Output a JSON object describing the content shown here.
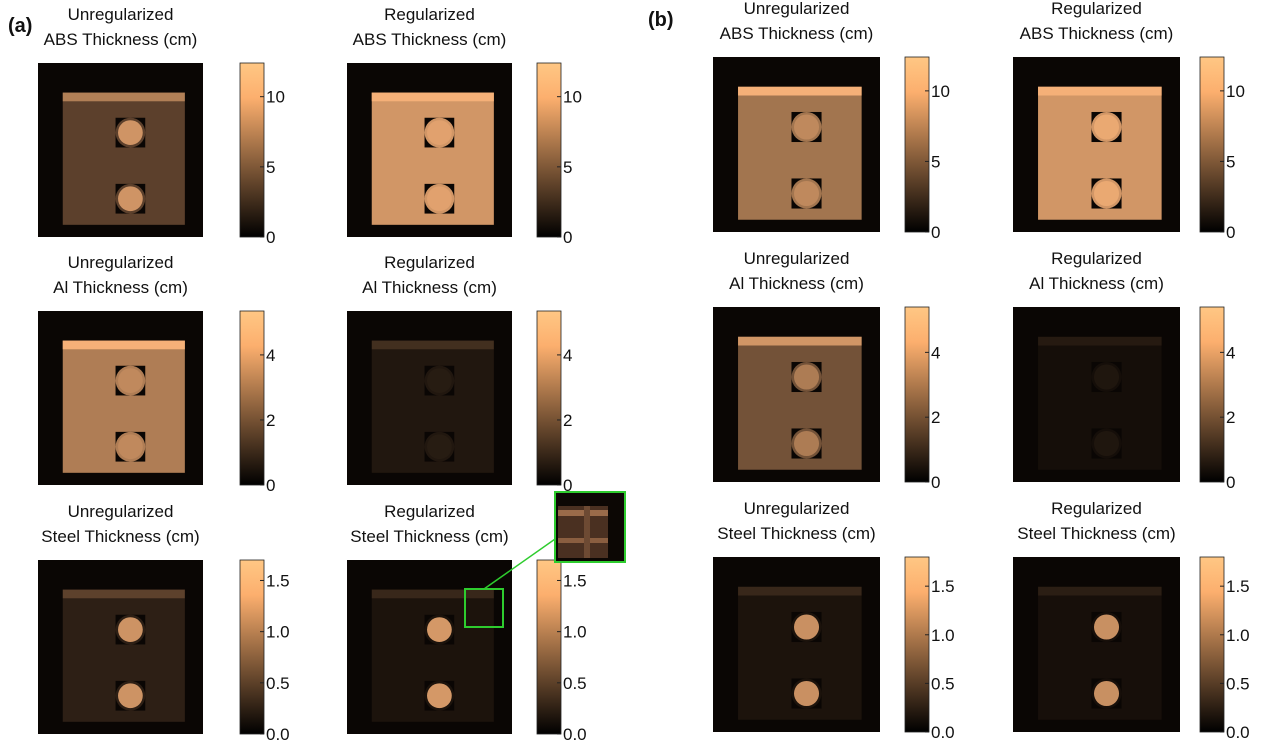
{
  "panels": [
    {
      "label": "(a)",
      "plots": [
        {
          "title": [
            "Unregularized",
            "ABS Thickness (cm)"
          ],
          "colorbar": {
            "range": [
              0,
              12.4
            ],
            "ticks": [
              0,
              5,
              10
            ]
          }
        },
        {
          "title": [
            "Regularized",
            "ABS Thickness (cm)"
          ],
          "colorbar": {
            "range": [
              0,
              12.4
            ],
            "ticks": [
              0,
              5,
              10
            ]
          }
        },
        {
          "title": [
            "Unregularized",
            "Al Thickness (cm)"
          ],
          "colorbar": {
            "range": [
              0,
              5.35
            ],
            "ticks": [
              0,
              2,
              4
            ]
          }
        },
        {
          "title": [
            "Regularized",
            "Al Thickness (cm)"
          ],
          "colorbar": {
            "range": [
              0,
              5.35
            ],
            "ticks": [
              0,
              2,
              4
            ]
          }
        },
        {
          "title": [
            "Unregularized",
            "Steel Thickness (cm)"
          ],
          "colorbar": {
            "range": [
              0,
              1.7
            ],
            "ticks": [
              {
                "value": 0,
                "label": "0.0"
              },
              0.5,
              {
                "value": 1,
                "label": "1.0"
              },
              1.5
            ]
          }
        },
        {
          "title": [
            "Regularized",
            "Steel Thickness (cm)"
          ],
          "colorbar": {
            "range": [
              0,
              1.7
            ],
            "ticks": [
              {
                "value": 0,
                "label": "0.0"
              },
              0.5,
              {
                "value": 1,
                "label": "1.0"
              },
              1.5
            ]
          }
        }
      ]
    },
    {
      "label": "(b)",
      "plots": [
        {
          "title": [
            "Unregularized",
            "ABS Thickness (cm)"
          ],
          "colorbar": {
            "range": [
              0,
              12.4
            ],
            "ticks": [
              0,
              5,
              10
            ]
          }
        },
        {
          "title": [
            "Regularized",
            "ABS Thickness (cm)"
          ],
          "colorbar": {
            "range": [
              0,
              12.4
            ],
            "ticks": [
              0,
              5,
              10
            ]
          }
        },
        {
          "title": [
            "Unregularized",
            "Al Thickness (cm)"
          ],
          "colorbar": {
            "range": [
              0,
              5.4
            ],
            "ticks": [
              0,
              2,
              4
            ]
          }
        },
        {
          "title": [
            "Regularized",
            "Al Thickness (cm)"
          ],
          "colorbar": {
            "range": [
              0,
              5.4
            ],
            "ticks": [
              0,
              2,
              4
            ]
          }
        },
        {
          "title": [
            "Unregularized",
            "Steel Thickness (cm)"
          ],
          "colorbar": {
            "range": [
              0,
              1.8
            ],
            "ticks": [
              {
                "value": 0,
                "label": "0.0"
              },
              0.5,
              {
                "value": 1,
                "label": "1.0"
              },
              1.5
            ]
          }
        },
        {
          "title": [
            "Regularized",
            "Steel Thickness (cm)"
          ],
          "colorbar": {
            "range": [
              0,
              1.8
            ],
            "ticks": [
              {
                "value": 0,
                "label": "0.0"
              },
              0.5,
              {
                "value": 1,
                "label": "1.0"
              },
              1.5
            ]
          }
        }
      ]
    }
  ]
}
